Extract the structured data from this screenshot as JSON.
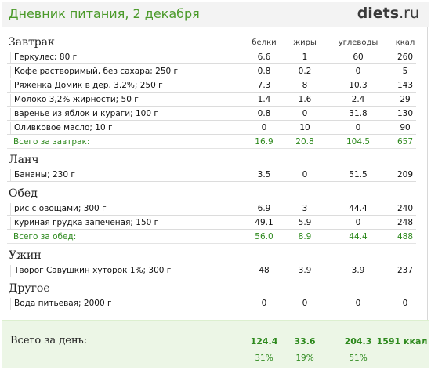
{
  "header": {
    "title": "Дневник питания, 2 декабря",
    "logo_main": "diets",
    "logo_suffix": ".ru"
  },
  "columns": [
    "белки",
    "жиры",
    "углеводы",
    "ккал"
  ],
  "meals": [
    {
      "name": "Завтрак",
      "items": [
        {
          "name": "Геркулес; 80 г",
          "protein": "6.6",
          "fat": "1",
          "carbs": "60",
          "kcal": "260"
        },
        {
          "name": "Кофе растворимый, без сахара; 250 г",
          "protein": "0.8",
          "fat": "0.2",
          "carbs": "0",
          "kcal": "5"
        },
        {
          "name": "Ряженка Домик в дер. 3.2%; 250 г",
          "protein": "7.3",
          "fat": "8",
          "carbs": "10.3",
          "kcal": "143"
        },
        {
          "name": "Молоко 3,2% жирности; 50 г",
          "protein": "1.4",
          "fat": "1.6",
          "carbs": "2.4",
          "kcal": "29"
        },
        {
          "name": "варенье из яблок и кураги; 100 г",
          "protein": "0.8",
          "fat": "0",
          "carbs": "31.8",
          "kcal": "130"
        },
        {
          "name": "Оливковое масло; 10 г",
          "protein": "0",
          "fat": "10",
          "carbs": "0",
          "kcal": "90"
        }
      ],
      "total": {
        "label": "Всего за завтрак:",
        "protein": "16.9",
        "fat": "20.8",
        "carbs": "104.5",
        "kcal": "657"
      }
    },
    {
      "name": "Ланч",
      "items": [
        {
          "name": "Бананы; 230 г",
          "protein": "3.5",
          "fat": "0",
          "carbs": "51.5",
          "kcal": "209"
        }
      ]
    },
    {
      "name": "Обед",
      "items": [
        {
          "name": "рис с овощами; 300 г",
          "protein": "6.9",
          "fat": "3",
          "carbs": "44.4",
          "kcal": "240"
        },
        {
          "name": "куриная грудка запеченая; 150 г",
          "protein": "49.1",
          "fat": "5.9",
          "carbs": "0",
          "kcal": "248"
        }
      ],
      "total": {
        "label": "Всего за обед:",
        "protein": "56.0",
        "fat": "8.9",
        "carbs": "44.4",
        "kcal": "488"
      }
    },
    {
      "name": "Ужин",
      "items": [
        {
          "name": "Творог Савушкин хуторок 1%; 300 г",
          "protein": "48",
          "fat": "3.9",
          "carbs": "3.9",
          "kcal": "237"
        }
      ]
    },
    {
      "name": "Другое",
      "items": [
        {
          "name": "Вода питьевая; 2000 г",
          "protein": "0",
          "fat": "0",
          "carbs": "0",
          "kcal": "0"
        }
      ]
    }
  ],
  "day_total": {
    "label": "Всего за день:",
    "protein": "124.4",
    "fat": "33.6",
    "carbs": "204.3",
    "kcal": "1591 ккал",
    "protein_pct": "31%",
    "fat_pct": "19%",
    "carbs_pct": "51%"
  },
  "colors": {
    "title": "#4b9a2a",
    "total_text": "#2f8a1f",
    "day_background": "#ecf6e6"
  }
}
